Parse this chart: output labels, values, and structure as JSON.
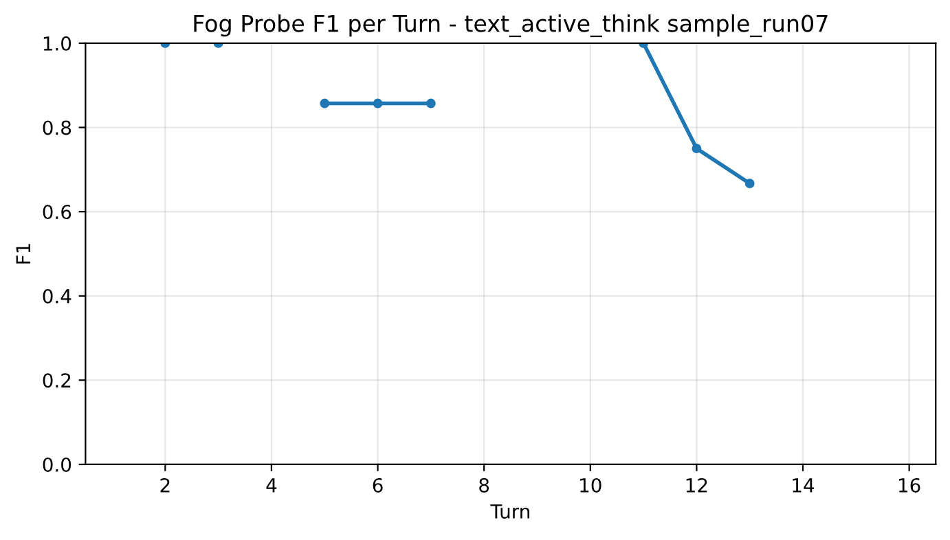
{
  "chart_data": {
    "type": "line",
    "title": "Fog Probe F1 per Turn - text_active_think sample_run07",
    "xlabel": "Turn",
    "ylabel": "F1",
    "series": [
      {
        "color": "#1f77b4",
        "x": [
          2
        ],
        "values": [
          1.0
        ]
      },
      {
        "color": "#1f77b4",
        "x": [
          3
        ],
        "values": [
          1.0
        ]
      },
      {
        "color": "#1f77b4",
        "x": [
          5,
          6,
          7
        ],
        "values": [
          0.857,
          0.857,
          0.857
        ]
      },
      {
        "color": "#1f77b4",
        "x": [
          11,
          12,
          13
        ],
        "values": [
          1.0,
          0.75,
          0.667
        ]
      }
    ],
    "xlim": [
      0.5,
      16.5
    ],
    "xticks": [
      2,
      4,
      6,
      8,
      10,
      12,
      14,
      16
    ],
    "ylim": [
      0,
      1
    ],
    "yticks": [
      {
        "value": 0,
        "label": "0.0"
      },
      0.2,
      0.4,
      0.6,
      0.8,
      {
        "value": 1,
        "label": "1.0"
      }
    ],
    "grid": true,
    "marker": "circle",
    "line_style": "solid"
  }
}
